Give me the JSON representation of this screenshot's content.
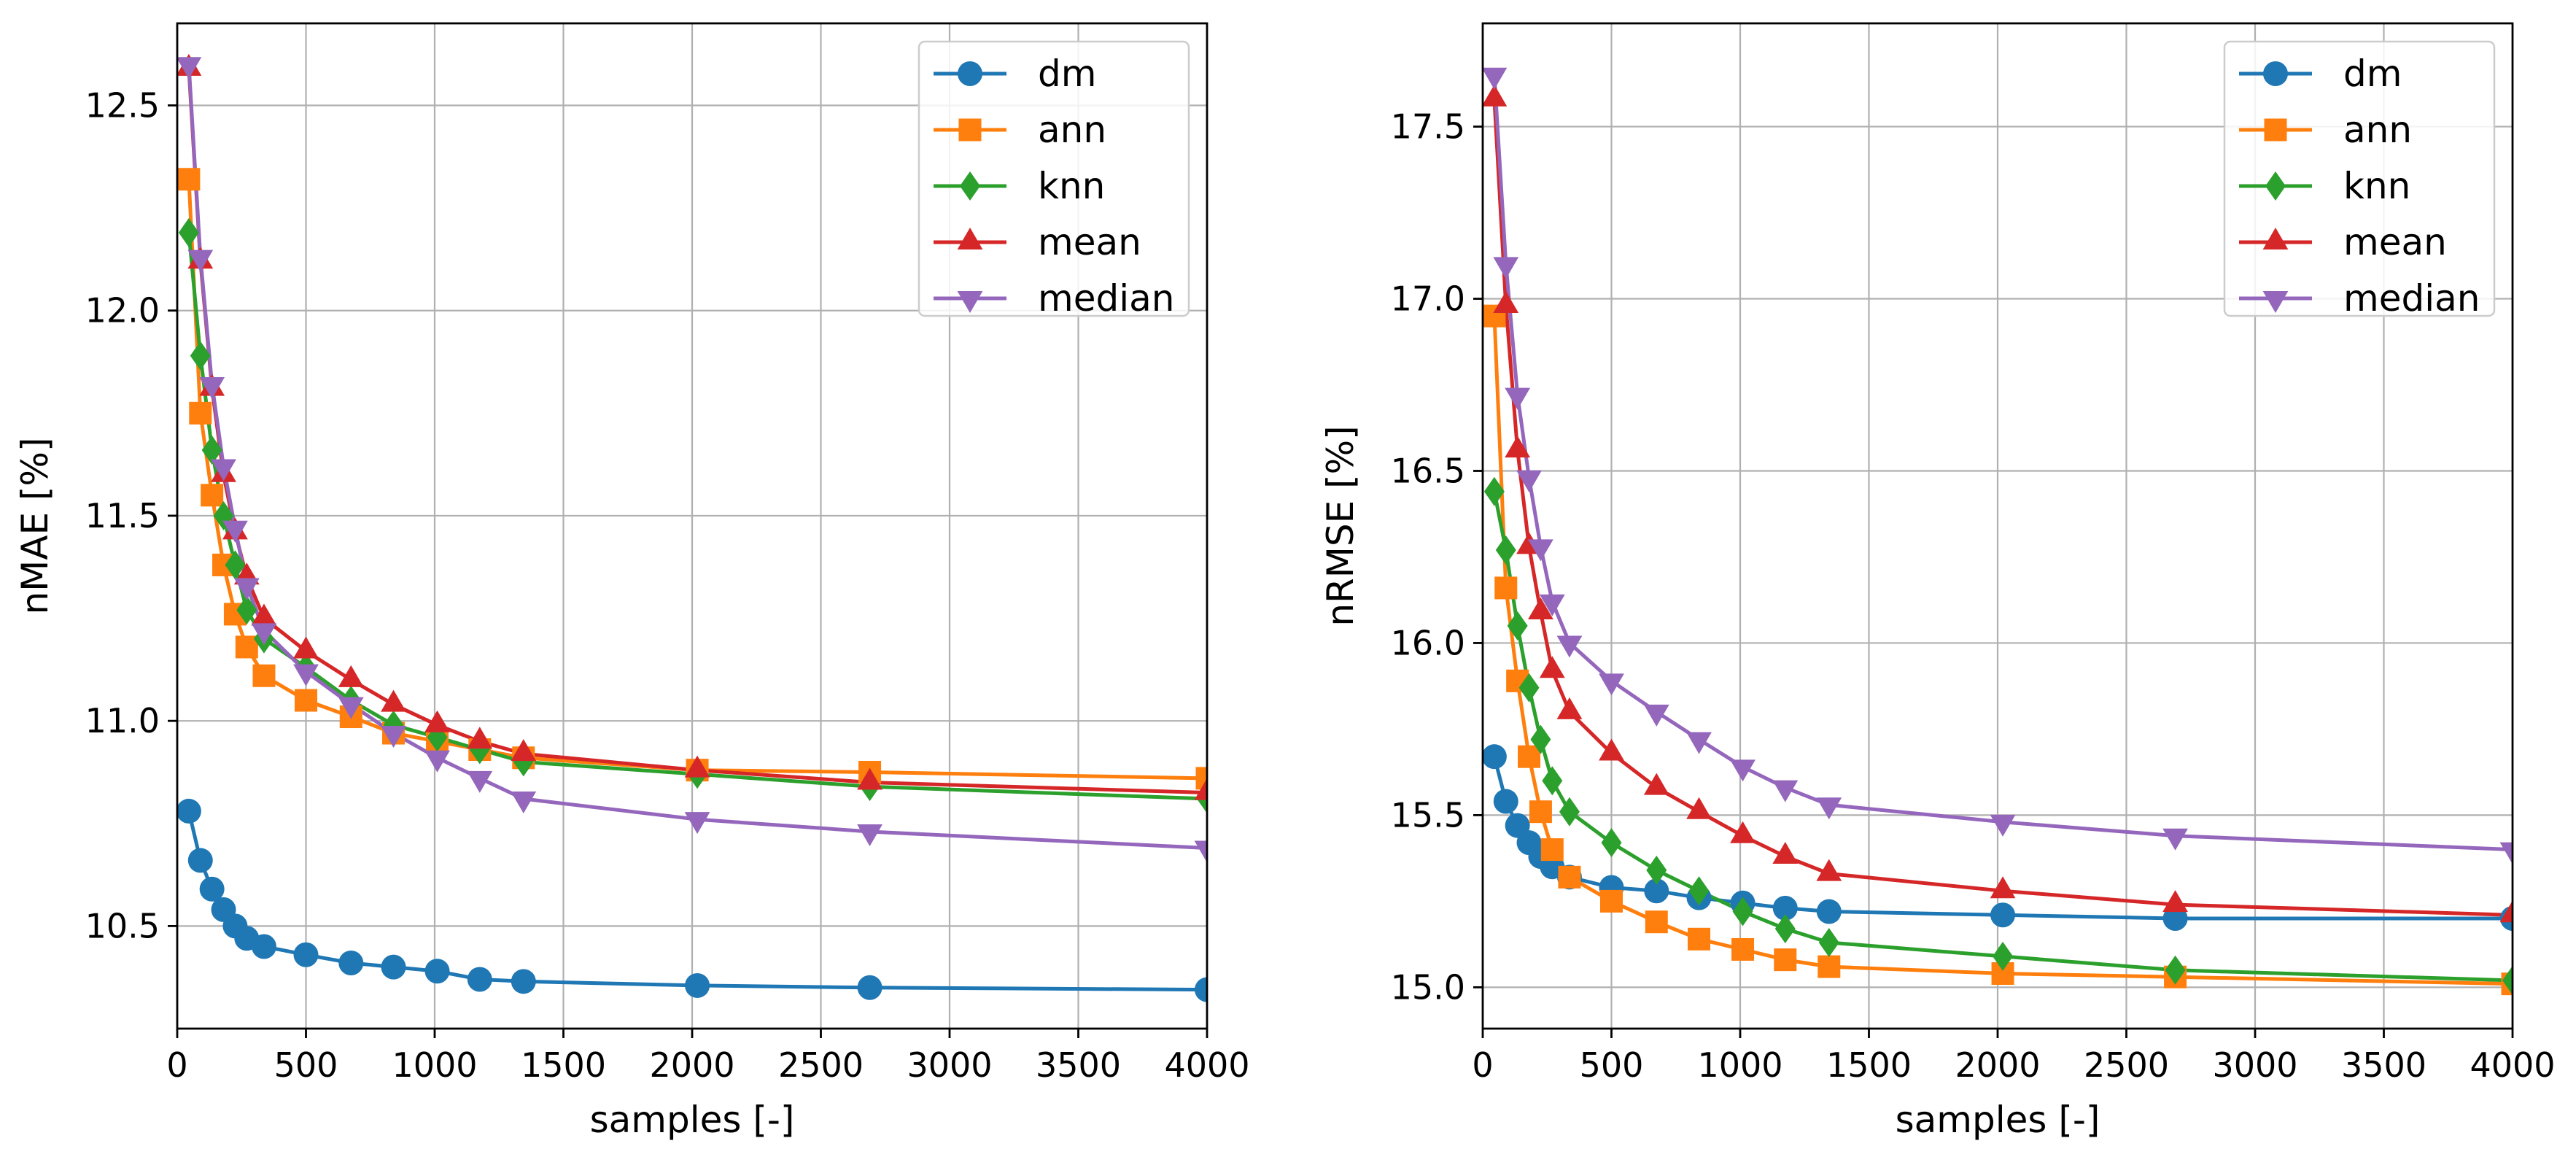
{
  "chart_data": [
    {
      "type": "line",
      "xlabel": "samples [-]",
      "ylabel": "nMAE [%]",
      "xlim": [
        0,
        4000
      ],
      "ylim": [
        10.25,
        12.7
      ],
      "xticks": [
        0,
        500,
        1000,
        1500,
        2000,
        2500,
        3000,
        3500,
        4000
      ],
      "yticks": [
        10.5,
        11.0,
        11.5,
        12.0,
        12.5
      ],
      "ytick_labels": [
        "10.5",
        "11.0",
        "11.5",
        "12.0",
        "12.5"
      ],
      "grid": true,
      "legend_position": "top-right",
      "series": [
        {
          "name": "dm",
          "color": "#1f77b4",
          "marker": "circle",
          "x": [
            45,
            90,
            135,
            180,
            225,
            270,
            337,
            500,
            675,
            840,
            1010,
            1175,
            1345,
            2020,
            2690,
            4000
          ],
          "y": [
            10.78,
            10.66,
            10.59,
            10.54,
            10.5,
            10.47,
            10.45,
            10.43,
            10.41,
            10.4,
            10.39,
            10.37,
            10.365,
            10.355,
            10.35,
            10.345
          ]
        },
        {
          "name": "ann",
          "color": "#ff7f0e",
          "marker": "square",
          "x": [
            45,
            90,
            135,
            180,
            225,
            270,
            337,
            500,
            675,
            840,
            1010,
            1175,
            1345,
            2020,
            2690,
            4000
          ],
          "y": [
            12.32,
            11.75,
            11.55,
            11.38,
            11.26,
            11.18,
            11.11,
            11.05,
            11.01,
            10.97,
            10.95,
            10.93,
            10.91,
            10.88,
            10.875,
            10.86
          ]
        },
        {
          "name": "knn",
          "color": "#2ca02c",
          "marker": "diamond",
          "x": [
            45,
            90,
            135,
            180,
            225,
            270,
            337,
            500,
            675,
            840,
            1010,
            1175,
            1345,
            2020,
            2690,
            4000
          ],
          "y": [
            12.19,
            11.89,
            11.66,
            11.5,
            11.38,
            11.27,
            11.2,
            11.13,
            11.05,
            10.99,
            10.96,
            10.93,
            10.9,
            10.87,
            10.84,
            10.81
          ]
        },
        {
          "name": "mean",
          "color": "#d62728",
          "marker": "triangle-up",
          "x": [
            45,
            90,
            135,
            180,
            225,
            270,
            337,
            500,
            675,
            840,
            1010,
            1175,
            1345,
            2020,
            2690,
            4000
          ],
          "y": [
            12.59,
            12.12,
            11.81,
            11.6,
            11.46,
            11.35,
            11.25,
            11.17,
            11.1,
            11.04,
            10.99,
            10.95,
            10.92,
            10.88,
            10.85,
            10.825
          ]
        },
        {
          "name": "median",
          "color": "#9467bd",
          "marker": "triangle-down",
          "x": [
            45,
            90,
            135,
            180,
            225,
            270,
            337,
            500,
            675,
            840,
            1010,
            1175,
            1345,
            2020,
            2690,
            4000
          ],
          "y": [
            12.6,
            12.13,
            11.82,
            11.62,
            11.47,
            11.33,
            11.22,
            11.12,
            11.04,
            10.97,
            10.91,
            10.86,
            10.81,
            10.76,
            10.73,
            10.69
          ]
        }
      ]
    },
    {
      "type": "line",
      "xlabel": "samples [-]",
      "ylabel": "nRMSE [%]",
      "xlim": [
        0,
        4000
      ],
      "ylim": [
        14.88,
        17.8
      ],
      "xticks": [
        0,
        500,
        1000,
        1500,
        2000,
        2500,
        3000,
        3500,
        4000
      ],
      "yticks": [
        15.0,
        15.5,
        16.0,
        16.5,
        17.0,
        17.5
      ],
      "ytick_labels": [
        "15.0",
        "15.5",
        "16.0",
        "16.5",
        "17.0",
        "17.5"
      ],
      "grid": true,
      "legend_position": "top-right",
      "series": [
        {
          "name": "dm",
          "color": "#1f77b4",
          "marker": "circle",
          "x": [
            45,
            90,
            135,
            180,
            225,
            270,
            337,
            500,
            675,
            840,
            1010,
            1175,
            1345,
            2020,
            2690,
            4000
          ],
          "y": [
            15.67,
            15.54,
            15.47,
            15.42,
            15.38,
            15.35,
            15.32,
            15.29,
            15.28,
            15.26,
            15.245,
            15.23,
            15.22,
            15.21,
            15.2,
            15.2
          ]
        },
        {
          "name": "ann",
          "color": "#ff7f0e",
          "marker": "square",
          "x": [
            45,
            90,
            135,
            180,
            225,
            270,
            337,
            500,
            675,
            840,
            1010,
            1175,
            1345,
            2020,
            2690,
            4000
          ],
          "y": [
            16.95,
            16.16,
            15.89,
            15.67,
            15.51,
            15.4,
            15.32,
            15.25,
            15.19,
            15.14,
            15.11,
            15.08,
            15.06,
            15.04,
            15.03,
            15.01
          ]
        },
        {
          "name": "knn",
          "color": "#2ca02c",
          "marker": "diamond",
          "x": [
            45,
            90,
            135,
            180,
            225,
            270,
            337,
            500,
            675,
            840,
            1010,
            1175,
            1345,
            2020,
            2690,
            4000
          ],
          "y": [
            16.44,
            16.27,
            16.05,
            15.87,
            15.72,
            15.6,
            15.51,
            15.42,
            15.34,
            15.28,
            15.22,
            15.17,
            15.13,
            15.09,
            15.05,
            15.02
          ]
        },
        {
          "name": "mean",
          "color": "#d62728",
          "marker": "triangle-up",
          "x": [
            45,
            90,
            135,
            180,
            225,
            270,
            337,
            500,
            675,
            840,
            1010,
            1175,
            1345,
            2020,
            2690,
            4000
          ],
          "y": [
            17.58,
            16.98,
            16.56,
            16.28,
            16.09,
            15.92,
            15.8,
            15.68,
            15.58,
            15.51,
            15.44,
            15.38,
            15.33,
            15.28,
            15.24,
            15.21
          ]
        },
        {
          "name": "median",
          "color": "#9467bd",
          "marker": "triangle-down",
          "x": [
            45,
            90,
            135,
            180,
            225,
            270,
            337,
            500,
            675,
            840,
            1010,
            1175,
            1345,
            2020,
            2690,
            4000
          ],
          "y": [
            17.65,
            17.1,
            16.72,
            16.48,
            16.28,
            16.12,
            16.0,
            15.89,
            15.8,
            15.72,
            15.64,
            15.58,
            15.53,
            15.48,
            15.44,
            15.4
          ]
        }
      ]
    }
  ]
}
